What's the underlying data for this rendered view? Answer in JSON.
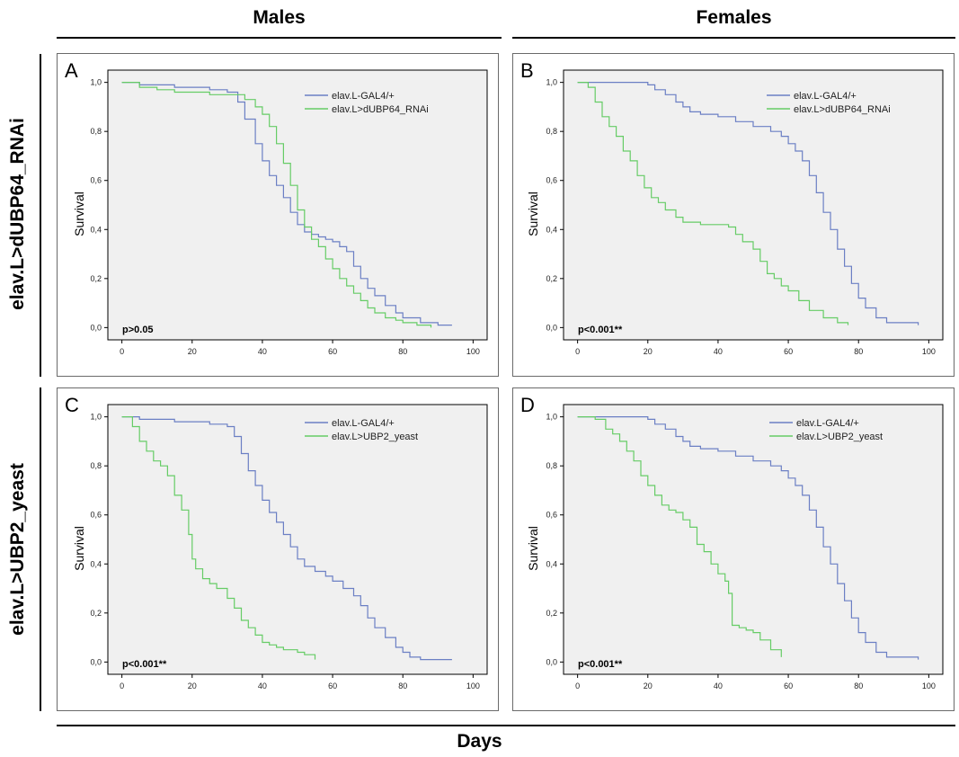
{
  "figure": {
    "columns": [
      "Males",
      "Females"
    ],
    "rows": [
      "elav.L>dUBP64_RNAi",
      "elav.L>UBP2_yeast"
    ],
    "x_label": "Days"
  },
  "colors": {
    "control": "#6b7fc4",
    "treatment": "#66cc66",
    "plot_bg": "#f0f0f0"
  },
  "chart_data": [
    {
      "type": "line",
      "letter": "A",
      "ylabel": "Survival",
      "pvalue": "p>0.05",
      "xlim": [
        -4,
        104
      ],
      "ylim": [
        -0.05,
        1.05
      ],
      "xticks": [
        0,
        20,
        40,
        60,
        80,
        100
      ],
      "xtick_labels": [
        "0",
        "20",
        "40",
        "60",
        "80",
        "100"
      ],
      "yticks": [
        0,
        0.2,
        0.4,
        0.6,
        0.8,
        1.0
      ],
      "ytick_labels": [
        "0,0",
        "0,2",
        "0,4",
        "0,6",
        "0,8",
        "1,0"
      ],
      "series": [
        {
          "name": "elav.L-GAL4/+",
          "color": "#6b7fc4",
          "x": [
            0,
            5,
            10,
            15,
            20,
            25,
            30,
            33,
            35,
            38,
            40,
            42,
            44,
            46,
            48,
            50,
            52,
            54,
            56,
            58,
            60,
            62,
            64,
            66,
            68,
            70,
            72,
            75,
            78,
            80,
            85,
            90,
            94
          ],
          "y": [
            1.0,
            0.99,
            0.99,
            0.98,
            0.98,
            0.97,
            0.96,
            0.92,
            0.85,
            0.75,
            0.68,
            0.62,
            0.58,
            0.53,
            0.47,
            0.42,
            0.39,
            0.38,
            0.37,
            0.36,
            0.35,
            0.33,
            0.31,
            0.25,
            0.2,
            0.16,
            0.13,
            0.09,
            0.06,
            0.04,
            0.02,
            0.01,
            0.01
          ]
        },
        {
          "name": "elav.L>dUBP64_RNAi",
          "color": "#66cc66",
          "x": [
            0,
            5,
            10,
            15,
            20,
            25,
            30,
            35,
            38,
            40,
            42,
            44,
            46,
            48,
            50,
            52,
            54,
            56,
            58,
            60,
            62,
            64,
            66,
            68,
            70,
            72,
            75,
            78,
            80,
            84,
            88
          ],
          "y": [
            1.0,
            0.98,
            0.97,
            0.96,
            0.96,
            0.95,
            0.95,
            0.93,
            0.9,
            0.87,
            0.82,
            0.75,
            0.67,
            0.58,
            0.48,
            0.41,
            0.36,
            0.33,
            0.28,
            0.24,
            0.2,
            0.17,
            0.14,
            0.11,
            0.08,
            0.06,
            0.04,
            0.03,
            0.02,
            0.01,
            0.0
          ]
        }
      ]
    },
    {
      "type": "line",
      "letter": "B",
      "ylabel": "Survival",
      "pvalue": "p<0.001**",
      "xlim": [
        -4,
        104
      ],
      "ylim": [
        -0.05,
        1.05
      ],
      "xticks": [
        0,
        20,
        40,
        60,
        80,
        100
      ],
      "xtick_labels": [
        "0",
        "20",
        "40",
        "60",
        "80",
        "100"
      ],
      "yticks": [
        0,
        0.2,
        0.4,
        0.6,
        0.8,
        1.0
      ],
      "ytick_labels": [
        "0,0",
        "0,2",
        "0,4",
        "0,6",
        "0,8",
        "1,0"
      ],
      "series": [
        {
          "name": "elav.L-GAL4/+",
          "color": "#6b7fc4",
          "x": [
            0,
            5,
            10,
            15,
            20,
            22,
            25,
            28,
            30,
            32,
            35,
            40,
            45,
            50,
            55,
            58,
            60,
            62,
            64,
            66,
            68,
            70,
            72,
            74,
            76,
            78,
            80,
            82,
            85,
            88,
            92,
            97
          ],
          "y": [
            1.0,
            1.0,
            1.0,
            1.0,
            0.99,
            0.97,
            0.95,
            0.92,
            0.9,
            0.88,
            0.87,
            0.86,
            0.84,
            0.82,
            0.8,
            0.78,
            0.75,
            0.72,
            0.68,
            0.62,
            0.55,
            0.47,
            0.4,
            0.32,
            0.25,
            0.18,
            0.12,
            0.08,
            0.04,
            0.02,
            0.02,
            0.01
          ]
        },
        {
          "name": "elav.L>dUBP64_RNAi",
          "color": "#66cc66",
          "x": [
            0,
            3,
            5,
            7,
            9,
            11,
            13,
            15,
            17,
            19,
            21,
            23,
            25,
            28,
            30,
            35,
            40,
            43,
            45,
            47,
            50,
            52,
            54,
            56,
            58,
            60,
            63,
            66,
            70,
            74,
            77
          ],
          "y": [
            1.0,
            0.98,
            0.92,
            0.86,
            0.82,
            0.78,
            0.72,
            0.68,
            0.62,
            0.57,
            0.53,
            0.51,
            0.48,
            0.45,
            0.43,
            0.42,
            0.42,
            0.41,
            0.38,
            0.35,
            0.32,
            0.27,
            0.22,
            0.2,
            0.17,
            0.15,
            0.11,
            0.07,
            0.04,
            0.02,
            0.01
          ]
        }
      ]
    },
    {
      "type": "line",
      "letter": "C",
      "ylabel": "Survival",
      "pvalue": "p<0.001**",
      "xlim": [
        -4,
        104
      ],
      "ylim": [
        -0.05,
        1.05
      ],
      "xticks": [
        0,
        20,
        40,
        60,
        80,
        100
      ],
      "xtick_labels": [
        "0",
        "20",
        "40",
        "60",
        "80",
        "100"
      ],
      "yticks": [
        0,
        0.2,
        0.4,
        0.6,
        0.8,
        1.0
      ],
      "ytick_labels": [
        "0,0",
        "0,2",
        "0,4",
        "0,6",
        "0,8",
        "1,0"
      ],
      "series": [
        {
          "name": "elav.L-GAL4/+",
          "color": "#6b7fc4",
          "x": [
            0,
            5,
            10,
            15,
            20,
            25,
            30,
            32,
            34,
            36,
            38,
            40,
            42,
            44,
            46,
            48,
            50,
            52,
            55,
            58,
            60,
            63,
            66,
            68,
            70,
            72,
            75,
            78,
            80,
            82,
            85,
            90,
            94
          ],
          "y": [
            1.0,
            0.99,
            0.99,
            0.98,
            0.98,
            0.97,
            0.96,
            0.92,
            0.85,
            0.78,
            0.72,
            0.66,
            0.61,
            0.57,
            0.52,
            0.47,
            0.42,
            0.39,
            0.37,
            0.35,
            0.33,
            0.3,
            0.27,
            0.23,
            0.18,
            0.14,
            0.1,
            0.06,
            0.04,
            0.02,
            0.01,
            0.01,
            0.01
          ]
        },
        {
          "name": "elav.L>UBP2_yeast",
          "color": "#66cc66",
          "x": [
            0,
            3,
            5,
            7,
            9,
            11,
            13,
            15,
            17,
            19,
            20,
            21,
            23,
            25,
            27,
            30,
            32,
            34,
            36,
            38,
            40,
            42,
            44,
            46,
            48,
            50,
            52,
            55
          ],
          "y": [
            1.0,
            0.96,
            0.9,
            0.86,
            0.82,
            0.8,
            0.76,
            0.68,
            0.62,
            0.52,
            0.42,
            0.38,
            0.34,
            0.32,
            0.3,
            0.26,
            0.22,
            0.17,
            0.14,
            0.11,
            0.08,
            0.07,
            0.06,
            0.05,
            0.05,
            0.04,
            0.03,
            0.01
          ]
        }
      ]
    },
    {
      "type": "line",
      "letter": "D",
      "ylabel": "Survival",
      "pvalue": "p<0.001**",
      "xlim": [
        -4,
        104
      ],
      "ylim": [
        -0.05,
        1.05
      ],
      "xticks": [
        0,
        20,
        40,
        60,
        80,
        100
      ],
      "xtick_labels": [
        "0",
        "20",
        "40",
        "60",
        "80",
        "100"
      ],
      "yticks": [
        0,
        0.2,
        0.4,
        0.6,
        0.8,
        1.0
      ],
      "ytick_labels": [
        "0,0",
        "0,2",
        "0,4",
        "0,6",
        "0,8",
        "1,0"
      ],
      "series": [
        {
          "name": "elav.L-GAL4/+",
          "color": "#6b7fc4",
          "x": [
            0,
            5,
            10,
            15,
            20,
            22,
            25,
            28,
            30,
            32,
            35,
            40,
            45,
            50,
            55,
            58,
            60,
            62,
            64,
            66,
            68,
            70,
            72,
            74,
            76,
            78,
            80,
            82,
            85,
            88,
            92,
            97
          ],
          "y": [
            1.0,
            1.0,
            1.0,
            1.0,
            0.99,
            0.97,
            0.95,
            0.92,
            0.9,
            0.88,
            0.87,
            0.86,
            0.84,
            0.82,
            0.8,
            0.78,
            0.75,
            0.72,
            0.68,
            0.62,
            0.55,
            0.47,
            0.4,
            0.32,
            0.25,
            0.18,
            0.12,
            0.08,
            0.04,
            0.02,
            0.02,
            0.01
          ]
        },
        {
          "name": "elav.L>UBP2_yeast",
          "color": "#66cc66",
          "x": [
            0,
            5,
            8,
            10,
            12,
            14,
            16,
            18,
            20,
            22,
            24,
            26,
            28,
            30,
            32,
            34,
            36,
            38,
            40,
            42,
            43,
            44,
            46,
            48,
            50,
            52,
            55,
            58
          ],
          "y": [
            1.0,
            0.99,
            0.95,
            0.93,
            0.9,
            0.86,
            0.82,
            0.76,
            0.72,
            0.68,
            0.64,
            0.62,
            0.61,
            0.58,
            0.55,
            0.48,
            0.45,
            0.4,
            0.36,
            0.33,
            0.28,
            0.15,
            0.14,
            0.13,
            0.12,
            0.09,
            0.05,
            0.02
          ]
        }
      ]
    }
  ]
}
